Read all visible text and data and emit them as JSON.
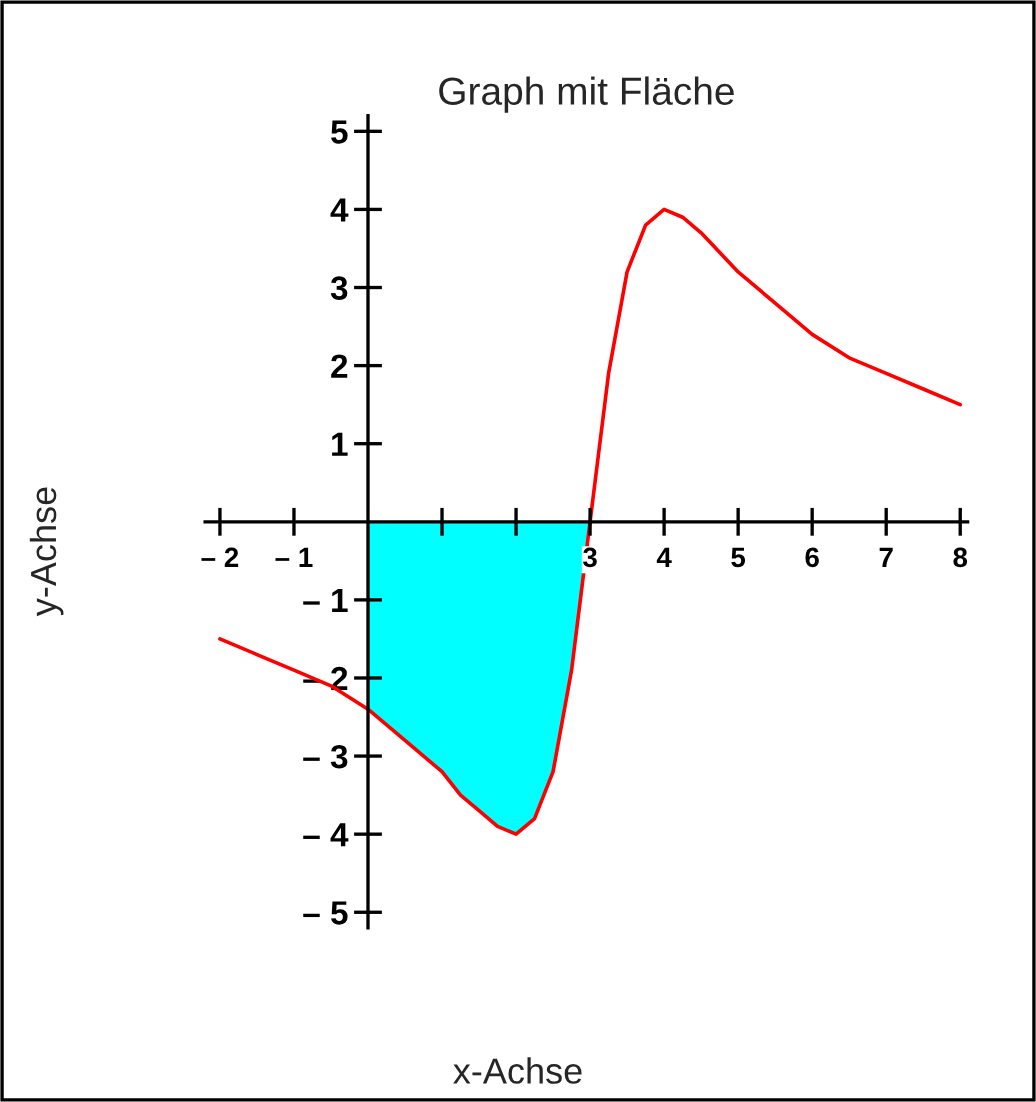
{
  "chart_data": {
    "type": "line",
    "title": "Graph mit Fläche",
    "xlabel": "x-Achse",
    "ylabel": "y-Achse",
    "series": [
      {
        "type": "area",
        "color": "#00ffff",
        "x": [
          0,
          0.5,
          1,
          1.25,
          1.5,
          1.75,
          2,
          2.25,
          2.5,
          2.75,
          3
        ],
        "values": [
          -2.4,
          -2.8,
          -3.2,
          -3.5,
          -3.7,
          -3.9,
          -4.0,
          -3.8,
          -3.2,
          -1.9,
          0
        ]
      },
      {
        "color": "#ff0000",
        "x": [
          -2,
          -1.5,
          -1,
          -0.5,
          0,
          0.5,
          1,
          1.25,
          1.5,
          1.75,
          2,
          2.25,
          2.5,
          2.75,
          3,
          3.25,
          3.5,
          3.75,
          4,
          4.25,
          4.5,
          5,
          5.5,
          6,
          6.5,
          7,
          7.5,
          8
        ],
        "values": [
          -1.5,
          -1.7,
          -1.9,
          -2.1,
          -2.4,
          -2.8,
          -3.2,
          -3.5,
          -3.7,
          -3.9,
          -4.0,
          -3.8,
          -3.2,
          -1.9,
          0,
          1.9,
          3.2,
          3.8,
          4.0,
          3.9,
          3.7,
          3.2,
          2.8,
          2.4,
          2.1,
          1.9,
          1.7,
          1.5
        ]
      }
    ],
    "xlim": [
      -2.2,
      8.1
    ],
    "ylim": [
      -5.2,
      5.2
    ],
    "xticks": [
      {
        "value": -2,
        "label": "– 2"
      },
      {
        "value": -1,
        "label": "– 1"
      },
      {
        "value": 1,
        "label": null
      },
      {
        "value": 2,
        "label": null
      },
      3,
      4,
      5,
      6,
      7,
      8
    ],
    "yticks": [
      {
        "value": -5,
        "label": "– 5"
      },
      {
        "value": -4,
        "label": "– 4"
      },
      {
        "value": -3,
        "label": "– 3"
      },
      {
        "value": -2,
        "label": "– 2"
      },
      {
        "value": -1,
        "label": "– 1"
      },
      1,
      2,
      3,
      4,
      5
    ],
    "grid": false,
    "legend": false
  }
}
